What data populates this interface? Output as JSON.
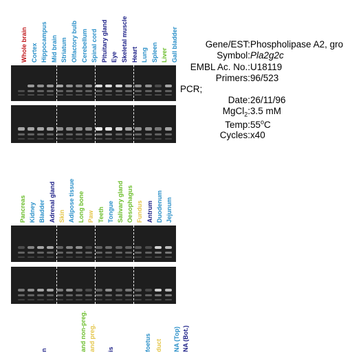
{
  "colors": {
    "red": "#c0171b",
    "blue": "#2a8fc8",
    "navy": "#1b1e86",
    "green": "#6bbd2b",
    "yellow": "#e4c64a",
    "gel": "#1e1e1e"
  },
  "panels": [
    {
      "labels": [
        {
          "t": "Whole brain",
          "c": "red"
        },
        {
          "t": "Cortex",
          "c": "blue"
        },
        {
          "t": "Hippocampus",
          "c": "blue"
        },
        {
          "t": "Mid brain",
          "c": "blue"
        },
        {
          "t": "Striatum",
          "c": "blue"
        },
        {
          "t": "Olfactory bulb",
          "c": "blue"
        },
        {
          "t": "Cerebellum",
          "c": "blue"
        },
        {
          "t": "Spinal cord",
          "c": "blue"
        },
        {
          "t": "Pituitary gland",
          "c": "navy"
        },
        {
          "t": "Eye",
          "c": "navy"
        },
        {
          "t": "Skeletal muscle",
          "c": "navy"
        },
        {
          "t": "Heart",
          "c": "navy"
        },
        {
          "t": "Lung",
          "c": "blue"
        },
        {
          "t": "Spleen",
          "c": "blue"
        },
        {
          "t": "Liver",
          "c": "green"
        },
        {
          "t": "Gall bladder",
          "c": "blue"
        }
      ]
    },
    {
      "labels": [
        {
          "t": "Pancreas",
          "c": "green"
        },
        {
          "t": "Kidney",
          "c": "blue"
        },
        {
          "t": "Bladder",
          "c": "blue"
        },
        {
          "t": "Adrenal gland",
          "c": "navy"
        },
        {
          "t": "Skin",
          "c": "yellow"
        },
        {
          "t": "Adipose tissue",
          "c": "blue"
        },
        {
          "t": "Long bone",
          "c": "green"
        },
        {
          "t": "Paw",
          "c": "yellow"
        },
        {
          "t": "Teeth",
          "c": "green"
        },
        {
          "t": "Tongue",
          "c": "blue"
        },
        {
          "t": "Salivary gland",
          "c": "green"
        },
        {
          "t": "Oesophagus",
          "c": "green"
        },
        {
          "t": "Fundus",
          "c": "yellow"
        },
        {
          "t": "Antrum",
          "c": "navy"
        },
        {
          "t": "Duodenum",
          "c": "blue"
        },
        {
          "t": "Jejunum",
          "c": "blue"
        }
      ]
    },
    {
      "labels": [
        {
          "t": "",
          "c": "blue"
        },
        {
          "t": "",
          "c": "blue"
        },
        {
          "t": "n",
          "c": "navy"
        },
        {
          "t": "",
          "c": "blue"
        },
        {
          "t": "",
          "c": "blue"
        },
        {
          "t": "and non-preg.",
          "c": "green"
        },
        {
          "t": "and preg.",
          "c": "yellow"
        },
        {
          "t": "",
          "c": "blue"
        },
        {
          "t": "",
          "c": "blue"
        },
        {
          "t": "is",
          "c": "navy"
        },
        {
          "t": "",
          "c": "blue"
        },
        {
          "t": "",
          "c": "blue"
        },
        {
          "t": "",
          "c": "blue"
        },
        {
          "t": "foetus",
          "c": "blue"
        },
        {
          "t": "duct",
          "c": "yellow"
        },
        {
          "t": "NA (Top)",
          "c": "blue"
        },
        {
          "t": "NA (Bot.)",
          "c": "navy"
        }
      ]
    }
  ],
  "info": {
    "gene_k": "Gene/EST:",
    "gene_v": "Phospholipase A2, gro",
    "symbol_k": "Symbol:",
    "symbol_v": "Pla2g2c",
    "embl_k": "EMBL Ac. No.:",
    "embl_v": "U18119",
    "primers_k": "Primers:",
    "primers_v": "96/523",
    "pcr_k": "PCR;",
    "date_k": "Date:",
    "date_v": "26/11/96",
    "mg_k": "MgCl",
    "mg_sub": "2",
    "mg_colon": ":",
    "mg_v": "3.5 mM",
    "temp_k": "Temp:",
    "temp_v": "55",
    "temp_sup": "o",
    "temp_unit": "C",
    "cycles_k": "Cycles:",
    "cycles_v": "x40"
  }
}
